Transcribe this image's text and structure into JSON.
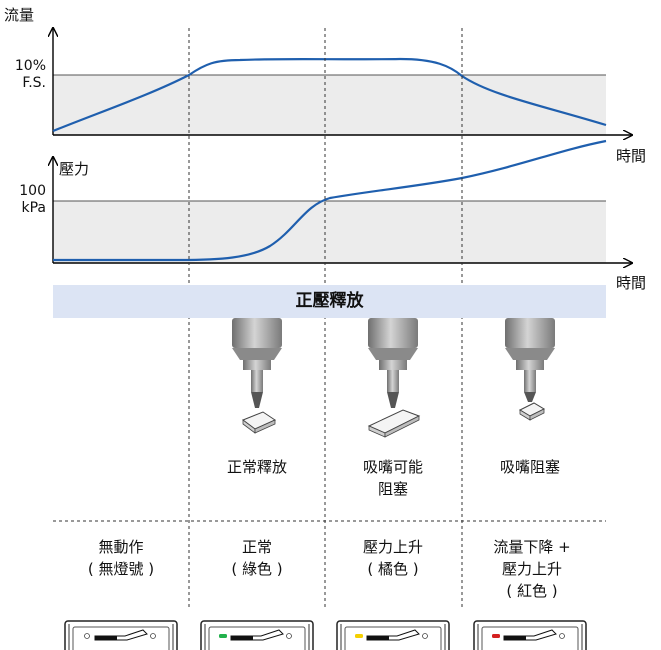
{
  "flow_chart": {
    "y_title": "流量",
    "threshold_line1": "10%",
    "threshold_line2": "F.S.",
    "x_title": "時間"
  },
  "pressure_chart": {
    "y_title": "壓力",
    "threshold_line1": "100",
    "threshold_line2": "kPa",
    "x_title": "時間"
  },
  "band_title": "正壓釋放",
  "phase_captions": [
    {
      "line1": "正常釋放",
      "line2": ""
    },
    {
      "line1": "吸嘴可能",
      "line2": "阻塞"
    },
    {
      "line1": "吸嘴阻塞",
      "line2": ""
    }
  ],
  "states": [
    {
      "line1": "無動作",
      "line2": "( 無燈號 )",
      "line3": "",
      "led": "none"
    },
    {
      "line1": "正常",
      "line2": "( 綠色 )",
      "line3": "",
      "led": "#22b14c"
    },
    {
      "line1": "壓力上升",
      "line2": "( 橘色 )",
      "line3": "",
      "led": "#f5d000"
    },
    {
      "line1": "流量下降 +",
      "line2": "壓力上升",
      "line3": "( 紅色 )",
      "led": "#d42020"
    }
  ],
  "colors": {
    "curve": "#1f5fae",
    "shade": "#ececec",
    "band": "#dce4f4"
  }
}
